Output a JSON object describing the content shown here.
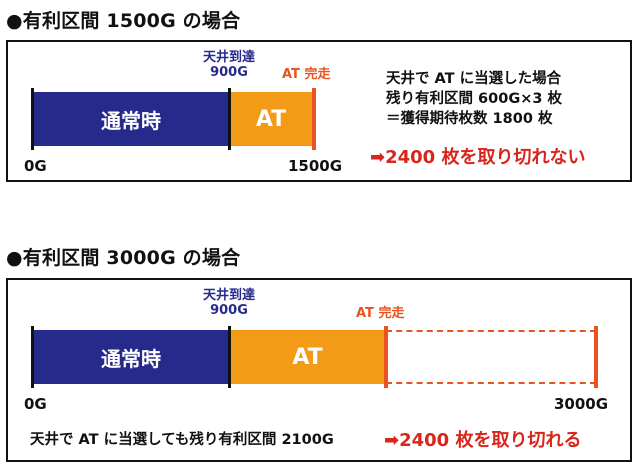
{
  "section1": {
    "heading": "●有利区間 1500G の場合",
    "ceiling_label_line1": "天井到達",
    "ceiling_label_line2": "900G",
    "at_end_label": "AT 完走",
    "normal_bar_label": "通常時",
    "at_bar_label": "AT",
    "axis_start": "0G",
    "axis_end": "1500G",
    "note_line1": "天井で AT に当選した場合",
    "note_line2": "残り有利区間 600G×3 枚",
    "note_line3": "＝獲得期待枚数 1800 枚",
    "result": "➡2400 枚を取り切れない"
  },
  "section2": {
    "heading": "●有利区間 3000G の場合",
    "ceiling_label_line1": "天井到達",
    "ceiling_label_line2": "900G",
    "at_end_label": "AT 完走",
    "normal_bar_label": "通常時",
    "at_bar_label": "AT",
    "axis_start": "0G",
    "axis_end": "3000G",
    "note": "天井で AT に当選しても残り有利区間 2100G",
    "result": "➡2400 枚を取り切れる"
  },
  "colors": {
    "normal": "#262a8a",
    "at": "#f39a16",
    "at_end_marker": "#e8531f",
    "result_text": "#d8261c"
  }
}
